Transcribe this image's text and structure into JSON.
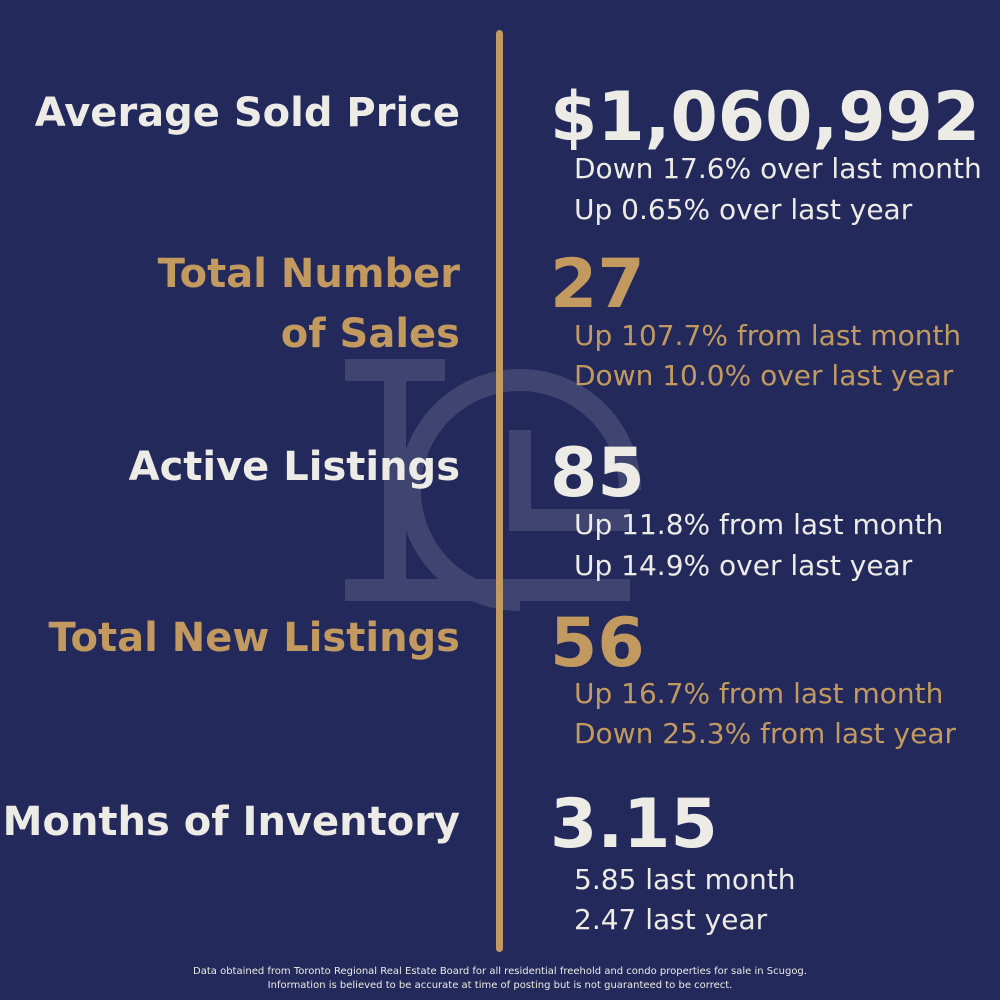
{
  "metrics": [
    {
      "label": "Average Sold Price",
      "value": "$1,060,992",
      "change_month": "Down 17.6% over last month",
      "change_year": "Up 0.65% over last year"
    },
    {
      "label_line1": "Total Number",
      "label_line2": "of Sales",
      "value": "27",
      "change_month": "Up 107.7% from last month",
      "change_year": "Down 10.0% over last year"
    },
    {
      "label": "Active Listings",
      "value": "85",
      "change_month": "Up 11.8% from last month",
      "change_year": "Up 14.9% over last year"
    },
    {
      "label": "Total New Listings",
      "value": "56",
      "change_month": "Up 16.7% from last month",
      "change_year": "Down 25.3% from last year"
    },
    {
      "label": "Months of Inventory",
      "value": "3.15",
      "last_month": "5.85 last month",
      "last_year": "2.47 last year"
    }
  ],
  "footer": {
    "line1": "Data obtained from Toronto Regional Real Estate Board for all residential freehold and condo properties for sale in Scugog.",
    "line2": "Information is believed to be accurate at time of posting but is not guaranteed to be correct."
  },
  "colors": {
    "background": "#23295a",
    "gold": "#c29a60",
    "cream": "#ecebe6"
  },
  "icons": {
    "watermark": "lc-monogram-icon"
  }
}
